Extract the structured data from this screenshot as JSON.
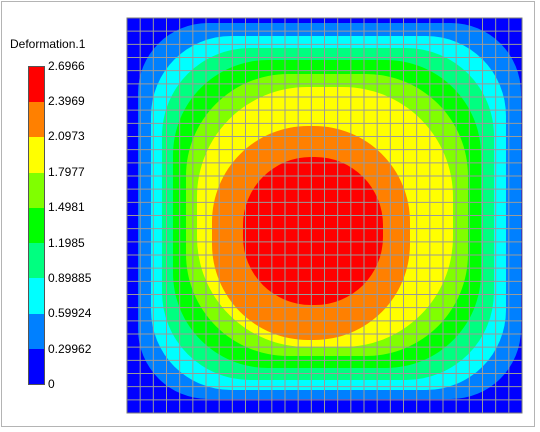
{
  "legend": {
    "title": "Deformation.1",
    "labels": [
      "2.6966",
      "2.3969",
      "2.0973",
      "1.7977",
      "1.4981",
      "1.1985",
      "0.89885",
      "0.59924",
      "0.29962",
      "0"
    ],
    "colors": [
      "#ff0000",
      "#ff8000",
      "#ffff00",
      "#80ff00",
      "#00ff00",
      "#00ff80",
      "#00ffff",
      "#0080ff",
      "#0000ff"
    ]
  },
  "plot": {
    "background_color": "#0000ff",
    "grid_color": "#9a9a9a",
    "grid_divisions": 30,
    "contour_levels": 8
  }
}
